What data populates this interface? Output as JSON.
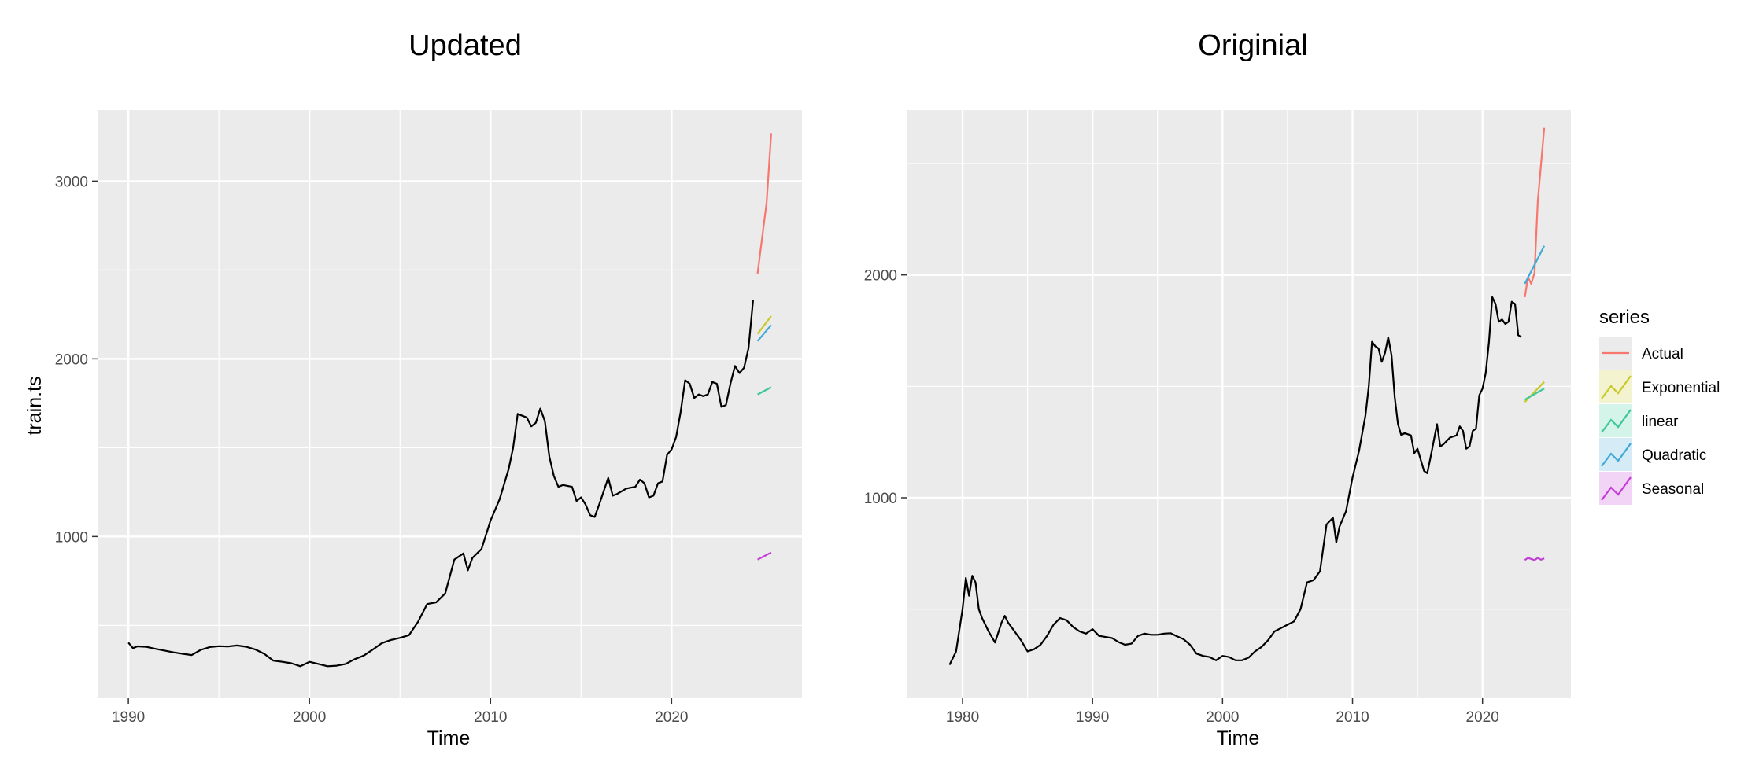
{
  "legend": {
    "title": "series",
    "items": [
      {
        "label": "Actual",
        "color": "#F8766D"
      },
      {
        "label": "Exponential",
        "color": "#C9C92A"
      },
      {
        "label": "linear",
        "color": "#3CC89A"
      },
      {
        "label": "Quadratic",
        "color": "#3FA9D8"
      },
      {
        "label": "Seasonal",
        "color": "#C23ED6"
      }
    ]
  },
  "chart_data": [
    {
      "type": "line",
      "title": "Updated",
      "xlabel": "Time",
      "ylabel": "train.ts",
      "xlim": [
        1988.3,
        2027.2
      ],
      "ylim": [
        90,
        3400
      ],
      "x_ticks": [
        1990,
        2000,
        2010,
        2020
      ],
      "y_ticks": [
        1000,
        2000,
        3000
      ],
      "y_minor": [
        500,
        1500,
        2500
      ],
      "grid": true,
      "series": [
        {
          "color": "#000000",
          "points": [
            [
              1990.0,
              403
            ],
            [
              1990.25,
              372
            ],
            [
              1990.5,
              382
            ],
            [
              1991.0,
              379
            ],
            [
              1991.5,
              368
            ],
            [
              1992.0,
              358
            ],
            [
              1992.5,
              348
            ],
            [
              1993.0,
              340
            ],
            [
              1993.5,
              333
            ],
            [
              1994.0,
              362
            ],
            [
              1994.5,
              378
            ],
            [
              1995.0,
              383
            ],
            [
              1995.5,
              381
            ],
            [
              1996.0,
              387
            ],
            [
              1996.5,
              380
            ],
            [
              1997.0,
              365
            ],
            [
              1997.5,
              340
            ],
            [
              1998.0,
              302
            ],
            [
              1998.5,
              295
            ],
            [
              1999.0,
              287
            ],
            [
              1999.5,
              270
            ],
            [
              2000.0,
              295
            ],
            [
              2000.5,
              283
            ],
            [
              2001.0,
              270
            ],
            [
              2001.5,
              273
            ],
            [
              2002.0,
              283
            ],
            [
              2002.5,
              310
            ],
            [
              2003.0,
              330
            ],
            [
              2003.5,
              364
            ],
            [
              2004.0,
              400
            ],
            [
              2004.5,
              418
            ],
            [
              2005.0,
              430
            ],
            [
              2005.5,
              445
            ],
            [
              2006.0,
              520
            ],
            [
              2006.5,
              620
            ],
            [
              2007.0,
              630
            ],
            [
              2007.5,
              680
            ],
            [
              2008.0,
              870
            ],
            [
              2008.5,
              905
            ],
            [
              2008.75,
              810
            ],
            [
              2009.0,
              880
            ],
            [
              2009.5,
              930
            ],
            [
              2010.0,
              1090
            ],
            [
              2010.5,
              1210
            ],
            [
              2011.0,
              1380
            ],
            [
              2011.25,
              1500
            ],
            [
              2011.5,
              1690
            ],
            [
              2011.75,
              1680
            ],
            [
              2012.0,
              1670
            ],
            [
              2012.25,
              1620
            ],
            [
              2012.5,
              1640
            ],
            [
              2012.75,
              1720
            ],
            [
              2013.0,
              1650
            ],
            [
              2013.25,
              1450
            ],
            [
              2013.5,
              1340
            ],
            [
              2013.75,
              1280
            ],
            [
              2014.0,
              1290
            ],
            [
              2014.5,
              1280
            ],
            [
              2014.75,
              1200
            ],
            [
              2015.0,
              1220
            ],
            [
              2015.25,
              1180
            ],
            [
              2015.5,
              1120
            ],
            [
              2015.75,
              1110
            ],
            [
              2016.0,
              1180
            ],
            [
              2016.5,
              1330
            ],
            [
              2016.75,
              1230
            ],
            [
              2017.0,
              1240
            ],
            [
              2017.5,
              1270
            ],
            [
              2018.0,
              1280
            ],
            [
              2018.25,
              1320
            ],
            [
              2018.5,
              1300
            ],
            [
              2018.75,
              1220
            ],
            [
              2019.0,
              1230
            ],
            [
              2019.25,
              1300
            ],
            [
              2019.5,
              1310
            ],
            [
              2019.75,
              1460
            ],
            [
              2020.0,
              1490
            ],
            [
              2020.25,
              1560
            ],
            [
              2020.5,
              1700
            ],
            [
              2020.75,
              1880
            ],
            [
              2021.0,
              1860
            ],
            [
              2021.25,
              1780
            ],
            [
              2021.5,
              1800
            ],
            [
              2021.75,
              1790
            ],
            [
              2022.0,
              1800
            ],
            [
              2022.25,
              1870
            ],
            [
              2022.5,
              1860
            ],
            [
              2022.75,
              1730
            ],
            [
              2023.0,
              1740
            ],
            [
              2023.25,
              1860
            ],
            [
              2023.5,
              1960
            ],
            [
              2023.75,
              1920
            ],
            [
              2024.0,
              1950
            ],
            [
              2024.25,
              2060
            ],
            [
              2024.5,
              2330
            ]
          ]
        },
        {
          "name": "Actual",
          "color": "#F8766D",
          "points": [
            [
              2024.75,
              2480
            ],
            [
              2025.25,
              2880
            ],
            [
              2025.5,
              3270
            ]
          ]
        },
        {
          "name": "Exponential",
          "color": "#C9C92A",
          "points": [
            [
              2024.75,
              2140
            ],
            [
              2025.5,
              2240
            ]
          ]
        },
        {
          "name": "linear",
          "color": "#3CC89A",
          "points": [
            [
              2024.75,
              1800
            ],
            [
              2025.5,
              1840
            ]
          ]
        },
        {
          "name": "Quadratic",
          "color": "#3FA9D8",
          "points": [
            [
              2024.75,
              2100
            ],
            [
              2025.5,
              2190
            ]
          ]
        },
        {
          "name": "Seasonal",
          "color": "#C23ED6",
          "points": [
            [
              2024.75,
              870
            ],
            [
              2025.5,
              910
            ]
          ]
        }
      ]
    },
    {
      "type": "line",
      "title": "Originial",
      "xlabel": "Time",
      "ylabel": "",
      "xlim": [
        1975.7,
        2026.8
      ],
      "ylim": [
        100,
        2740
      ],
      "x_ticks": [
        1980,
        1990,
        2000,
        2010,
        2020
      ],
      "y_ticks": [
        1000,
        2000
      ],
      "y_minor": [
        500,
        1500,
        2500
      ],
      "grid": true,
      "series": [
        {
          "color": "#000000",
          "points": [
            [
              1979.0,
              250
            ],
            [
              1979.5,
              310
            ],
            [
              1980.0,
              500
            ],
            [
              1980.25,
              640
            ],
            [
              1980.5,
              560
            ],
            [
              1980.75,
              650
            ],
            [
              1981.0,
              620
            ],
            [
              1981.25,
              500
            ],
            [
              1981.5,
              460
            ],
            [
              1982.0,
              400
            ],
            [
              1982.5,
              350
            ],
            [
              1983.0,
              440
            ],
            [
              1983.25,
              470
            ],
            [
              1983.5,
              440
            ],
            [
              1984.0,
              400
            ],
            [
              1984.5,
              360
            ],
            [
              1985.0,
              310
            ],
            [
              1985.5,
              320
            ],
            [
              1986.0,
              340
            ],
            [
              1986.5,
              380
            ],
            [
              1987.0,
              430
            ],
            [
              1987.5,
              460
            ],
            [
              1988.0,
              450
            ],
            [
              1988.5,
              420
            ],
            [
              1989.0,
              400
            ],
            [
              1989.5,
              390
            ],
            [
              1990.0,
              410
            ],
            [
              1990.5,
              380
            ],
            [
              1991.0,
              375
            ],
            [
              1991.5,
              370
            ],
            [
              1992.0,
              352
            ],
            [
              1992.5,
              340
            ],
            [
              1993.0,
              345
            ],
            [
              1993.5,
              380
            ],
            [
              1994.0,
              390
            ],
            [
              1994.5,
              385
            ],
            [
              1995.0,
              385
            ],
            [
              1995.5,
              390
            ],
            [
              1996.0,
              392
            ],
            [
              1996.5,
              378
            ],
            [
              1997.0,
              365
            ],
            [
              1997.5,
              340
            ],
            [
              1998.0,
              300
            ],
            [
              1998.5,
              290
            ],
            [
              1999.0,
              285
            ],
            [
              1999.5,
              270
            ],
            [
              2000.0,
              290
            ],
            [
              2000.5,
              285
            ],
            [
              2001.0,
              270
            ],
            [
              2001.5,
              270
            ],
            [
              2002.0,
              282
            ],
            [
              2002.5,
              310
            ],
            [
              2003.0,
              330
            ],
            [
              2003.5,
              360
            ],
            [
              2004.0,
              400
            ],
            [
              2004.5,
              415
            ],
            [
              2005.0,
              430
            ],
            [
              2005.5,
              445
            ],
            [
              2006.0,
              500
            ],
            [
              2006.5,
              620
            ],
            [
              2007.0,
              630
            ],
            [
              2007.5,
              670
            ],
            [
              2008.0,
              880
            ],
            [
              2008.5,
              910
            ],
            [
              2008.75,
              800
            ],
            [
              2009.0,
              870
            ],
            [
              2009.5,
              940
            ],
            [
              2010.0,
              1090
            ],
            [
              2010.5,
              1210
            ],
            [
              2011.0,
              1370
            ],
            [
              2011.25,
              1500
            ],
            [
              2011.5,
              1700
            ],
            [
              2011.75,
              1680
            ],
            [
              2012.0,
              1670
            ],
            [
              2012.25,
              1610
            ],
            [
              2012.5,
              1650
            ],
            [
              2012.75,
              1720
            ],
            [
              2013.0,
              1640
            ],
            [
              2013.25,
              1450
            ],
            [
              2013.5,
              1330
            ],
            [
              2013.75,
              1280
            ],
            [
              2014.0,
              1290
            ],
            [
              2014.5,
              1280
            ],
            [
              2014.75,
              1200
            ],
            [
              2015.0,
              1220
            ],
            [
              2015.25,
              1170
            ],
            [
              2015.5,
              1120
            ],
            [
              2015.75,
              1110
            ],
            [
              2016.0,
              1180
            ],
            [
              2016.5,
              1330
            ],
            [
              2016.75,
              1230
            ],
            [
              2017.0,
              1240
            ],
            [
              2017.5,
              1270
            ],
            [
              2018.0,
              1280
            ],
            [
              2018.25,
              1320
            ],
            [
              2018.5,
              1300
            ],
            [
              2018.75,
              1220
            ],
            [
              2019.0,
              1230
            ],
            [
              2019.25,
              1300
            ],
            [
              2019.5,
              1310
            ],
            [
              2019.75,
              1460
            ],
            [
              2020.0,
              1490
            ],
            [
              2020.25,
              1560
            ],
            [
              2020.5,
              1700
            ],
            [
              2020.75,
              1900
            ],
            [
              2021.0,
              1870
            ],
            [
              2021.25,
              1790
            ],
            [
              2021.5,
              1800
            ],
            [
              2021.75,
              1780
            ],
            [
              2022.0,
              1790
            ],
            [
              2022.25,
              1880
            ],
            [
              2022.5,
              1870
            ],
            [
              2022.75,
              1730
            ],
            [
              2023.0,
              1720
            ]
          ]
        },
        {
          "name": "Actual",
          "color": "#F8766D",
          "points": [
            [
              2023.25,
              1900
            ],
            [
              2023.5,
              1990
            ],
            [
              2023.75,
              1960
            ],
            [
              2024.0,
              2010
            ],
            [
              2024.25,
              2330
            ],
            [
              2024.75,
              2660
            ]
          ]
        },
        {
          "name": "Exponential",
          "color": "#C9C92A",
          "points": [
            [
              2023.25,
              1430
            ],
            [
              2024.75,
              1520
            ]
          ]
        },
        {
          "name": "linear",
          "color": "#3CC89A",
          "points": [
            [
              2023.25,
              1440
            ],
            [
              2024.75,
              1490
            ]
          ]
        },
        {
          "name": "Quadratic",
          "color": "#3FA9D8",
          "points": [
            [
              2023.25,
              1960
            ],
            [
              2024.75,
              2130
            ]
          ]
        },
        {
          "name": "Seasonal",
          "color": "#C23ED6",
          "points": [
            [
              2023.25,
              720
            ],
            [
              2023.5,
              730
            ],
            [
              2023.75,
              725
            ],
            [
              2024.0,
              720
            ],
            [
              2024.25,
              730
            ],
            [
              2024.5,
              722
            ],
            [
              2024.75,
              728
            ]
          ]
        }
      ]
    }
  ]
}
